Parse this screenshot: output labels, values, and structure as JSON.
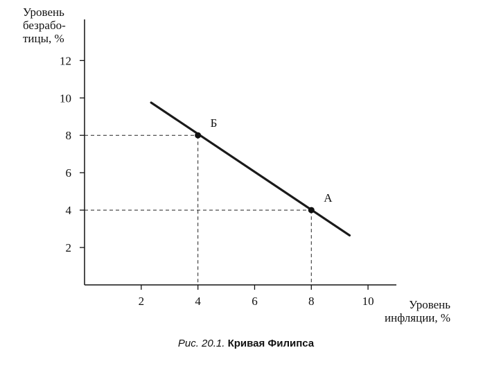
{
  "chart_data": {
    "type": "line",
    "xlabel": "Уровень\nинфляции, %",
    "ylabel": "Уровень\nбезрабо-\nтицы, %",
    "xlim": [
      0,
      11
    ],
    "ylim": [
      0,
      14.2
    ],
    "x_ticks": [
      2,
      4,
      6,
      8,
      10
    ],
    "y_ticks": [
      2,
      4,
      6,
      8,
      10,
      12
    ],
    "grid": false,
    "series": [
      {
        "x": [
          2.35,
          9.35
        ],
        "y": [
          9.75,
          2.65
        ],
        "color": "#1a1a1a"
      }
    ],
    "points": [
      {
        "label": "Б",
        "x": 4,
        "y": 8
      },
      {
        "label": "А",
        "x": 8,
        "y": 4
      }
    ],
    "caption_prefix": "Рис. 20.1.",
    "caption_title": "Кривая Филипса"
  }
}
